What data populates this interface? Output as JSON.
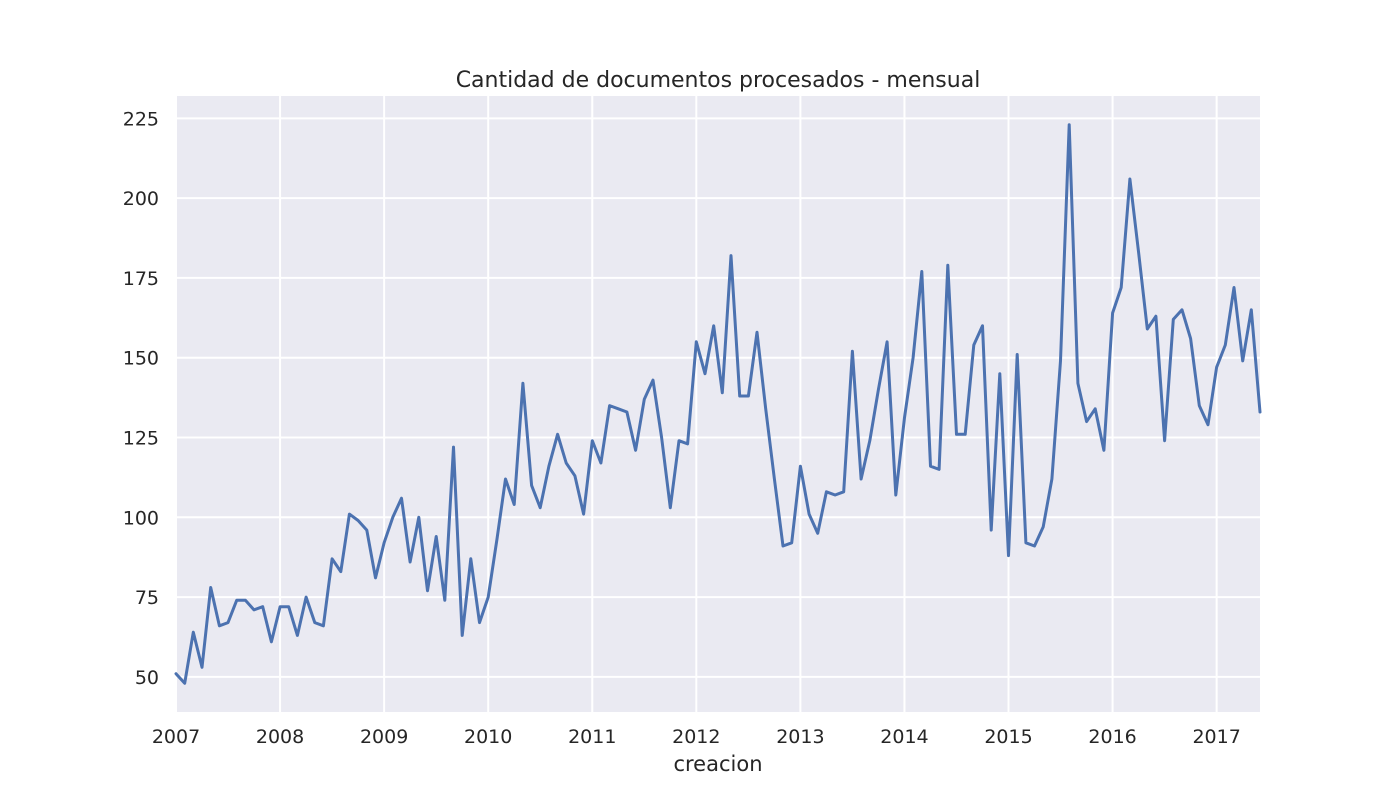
{
  "chart_data": {
    "type": "line",
    "title": "Cantidad de documentos procesados - mensual",
    "xlabel": "creacion",
    "ylabel": "",
    "x_tick_labels": [
      "2007",
      "2008",
      "2009",
      "2010",
      "2011",
      "2012",
      "2013",
      "2014",
      "2015",
      "2016",
      "2017"
    ],
    "y_tick_labels": [
      "50",
      "75",
      "100",
      "125",
      "150",
      "175",
      "200",
      "225"
    ],
    "y_ticks": [
      50,
      75,
      100,
      125,
      150,
      175,
      200,
      225
    ],
    "ylim": [
      39,
      232
    ],
    "xlim": [
      "2007-01",
      "2017-06"
    ],
    "grid": true,
    "legend": "none",
    "colors": {
      "line": "#4c72b0",
      "background": "#eaeaf2",
      "grid": "#ffffff"
    },
    "x": [
      "2007-01",
      "2007-02",
      "2007-03",
      "2007-04",
      "2007-05",
      "2007-06",
      "2007-07",
      "2007-08",
      "2007-09",
      "2007-10",
      "2007-11",
      "2007-12",
      "2008-01",
      "2008-02",
      "2008-03",
      "2008-04",
      "2008-05",
      "2008-06",
      "2008-07",
      "2008-08",
      "2008-09",
      "2008-10",
      "2008-11",
      "2008-12",
      "2009-01",
      "2009-02",
      "2009-03",
      "2009-04",
      "2009-05",
      "2009-06",
      "2009-07",
      "2009-08",
      "2009-09",
      "2009-10",
      "2009-11",
      "2009-12",
      "2010-01",
      "2010-02",
      "2010-03",
      "2010-04",
      "2010-05",
      "2010-06",
      "2010-07",
      "2010-08",
      "2010-09",
      "2010-10",
      "2010-11",
      "2010-12",
      "2011-01",
      "2011-02",
      "2011-03",
      "2011-04",
      "2011-05",
      "2011-06",
      "2011-07",
      "2011-08",
      "2011-09",
      "2011-10",
      "2011-11",
      "2011-12",
      "2012-01",
      "2012-02",
      "2012-03",
      "2012-04",
      "2012-05",
      "2012-06",
      "2012-07",
      "2012-08",
      "2012-09",
      "2012-10",
      "2012-11",
      "2012-12",
      "2013-01",
      "2013-02",
      "2013-03",
      "2013-04",
      "2013-05",
      "2013-06",
      "2013-07",
      "2013-08",
      "2013-09",
      "2013-10",
      "2013-11",
      "2013-12",
      "2014-01",
      "2014-02",
      "2014-03",
      "2014-04",
      "2014-05",
      "2014-06",
      "2014-07",
      "2014-08",
      "2014-09",
      "2014-10",
      "2014-11",
      "2014-12",
      "2015-01",
      "2015-02",
      "2015-03",
      "2015-04",
      "2015-05",
      "2015-06",
      "2015-07",
      "2015-08",
      "2015-09",
      "2015-10",
      "2015-11",
      "2015-12",
      "2016-01",
      "2016-02",
      "2016-03",
      "2016-04",
      "2016-05",
      "2016-06",
      "2016-07",
      "2016-08",
      "2016-09",
      "2016-10",
      "2016-11",
      "2016-12",
      "2017-01",
      "2017-02",
      "2017-03",
      "2017-04",
      "2017-05",
      "2017-06"
    ],
    "series": [
      {
        "values": [
          51,
          48,
          64,
          53,
          78,
          66,
          67,
          74,
          74,
          71,
          72,
          61,
          72,
          72,
          63,
          75,
          67,
          66,
          87,
          83,
          101,
          99,
          96,
          81,
          92,
          100,
          106,
          86,
          100,
          77,
          94,
          74,
          122,
          63,
          87,
          67,
          75,
          93,
          112,
          104,
          142,
          110,
          103,
          116,
          126,
          117,
          113,
          101,
          124,
          117,
          135,
          134,
          133,
          121,
          137,
          143,
          125,
          103,
          124,
          123,
          155,
          145,
          160,
          139,
          182,
          138,
          138,
          158,
          134,
          112,
          91,
          92,
          116,
          101,
          95,
          108,
          107,
          108,
          152,
          112,
          124,
          140,
          155,
          107,
          131,
          150,
          177,
          116,
          115,
          179,
          126,
          126,
          154,
          160,
          96,
          145,
          88,
          151,
          92,
          91,
          97,
          112,
          149,
          223,
          142,
          130,
          134,
          121,
          164,
          172,
          206,
          183,
          159,
          163,
          124,
          162,
          165,
          156,
          135,
          129,
          147,
          154,
          172,
          149,
          165,
          133
        ]
      }
    ]
  }
}
